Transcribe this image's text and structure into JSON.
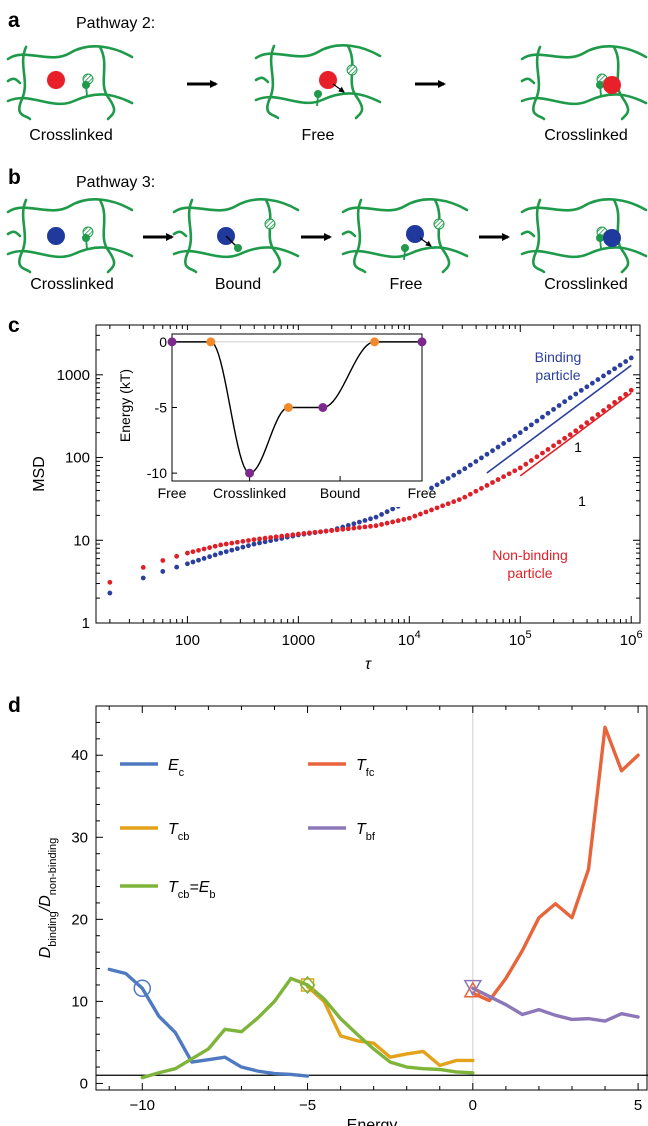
{
  "panel_a": {
    "letter": "a",
    "pathway": "Pathway 2:",
    "states": [
      "Crosslinked",
      "Free",
      "Crosslinked"
    ]
  },
  "panel_b": {
    "letter": "b",
    "pathway": "Pathway 3:",
    "states": [
      "Crosslinked",
      "Bound",
      "Free",
      "Crosslinked"
    ]
  },
  "colors": {
    "network": "#1e9a4a",
    "red_particle": "#e8202a",
    "blue_particle": "#1f3a9c",
    "binding_series": "#2b3f9e",
    "nonbinding_series": "#e02028",
    "purple_marker": "#7b2a8c",
    "orange_marker": "#f28a2c",
    "Ec": "#4f7ac0",
    "Tcb": "#e3a21a",
    "TcbEb": "#7fb43a",
    "Tfc": "#e8643a",
    "Tbf": "#8c78b8"
  },
  "chart_data": [
    {
      "panel": "c",
      "letter": "c",
      "type": "scatter",
      "xscale": "log",
      "yscale": "log",
      "xlabel": "τ",
      "ylabel": "MSD",
      "xlim": [
        15,
        1200000
      ],
      "ylim": [
        1,
        4000
      ],
      "x_ticks": [
        "100",
        "1000",
        "10",
        "10",
        "10"
      ],
      "x_tick_exponents": [
        "",
        "",
        "4",
        "5",
        "6"
      ],
      "x_tick_values": [
        100,
        1000,
        10000,
        100000,
        1000000
      ],
      "y_ticks": [
        "1",
        "10",
        "100",
        "1000"
      ],
      "y_tick_values": [
        1,
        10,
        100,
        1000
      ],
      "annotations": {
        "binding_label_1": "Binding",
        "binding_label_2": "particle",
        "nonbinding_label_1": "Non-binding",
        "nonbinding_label_2": "particle",
        "slope_label_1": "1",
        "slope_label_2": "1"
      },
      "series": [
        {
          "name": "Binding particle",
          "color": "#2b3f9e",
          "anchors": [
            [
              20,
              2.3
            ],
            [
              40,
              3.5
            ],
            [
              60,
              4.2
            ],
            [
              100,
              5.2
            ],
            [
              200,
              7.0
            ],
            [
              400,
              9.0
            ],
            [
              1000,
              11.6
            ],
            [
              2000,
              13.2
            ],
            [
              5000,
              19.0
            ],
            [
              10000,
              30.0
            ],
            [
              30000,
              70.0
            ],
            [
              100000,
              200.0
            ],
            [
              300000,
              560.0
            ],
            [
              1000000,
              1600.0
            ]
          ]
        },
        {
          "name": "Non-binding particle",
          "color": "#e02028",
          "anchors": [
            [
              20,
              3.1
            ],
            [
              40,
              4.7
            ],
            [
              60,
              5.7
            ],
            [
              100,
              7.0
            ],
            [
              200,
              8.8
            ],
            [
              400,
              10.2
            ],
            [
              1000,
              11.9
            ],
            [
              2000,
              13.1
            ],
            [
              5000,
              15.0
            ],
            [
              10000,
              18.5
            ],
            [
              30000,
              32.0
            ],
            [
              100000,
              75.0
            ],
            [
              300000,
              200.0
            ],
            [
              1000000,
              650.0
            ]
          ]
        }
      ],
      "slope_lines": [
        {
          "color": "#2b3f9e",
          "x": [
            50000,
            1000000
          ],
          "y": [
            65,
            1300
          ]
        },
        {
          "color": "#e02028",
          "x": [
            100000,
            1000000
          ],
          "y": [
            60,
            600
          ]
        }
      ],
      "inset": {
        "type": "line",
        "ylabel": "Energy (kT)",
        "ylim": [
          -10.6,
          0.6
        ],
        "y_ticks": [
          "0",
          "-5",
          "-10"
        ],
        "y_tick_values": [
          0,
          -5,
          -10
        ],
        "x_ticks": [
          "Free",
          "Crosslinked",
          "Bound",
          "Free"
        ],
        "x_tick_positions": [
          0,
          1.8,
          3.9,
          5.8
        ],
        "xlim": [
          0,
          5.8
        ],
        "curve": [
          [
            0,
            0
          ],
          [
            0.9,
            0
          ],
          [
            1.8,
            -10
          ],
          [
            2.7,
            -5
          ],
          [
            3.5,
            -5
          ],
          [
            4.7,
            0
          ],
          [
            5.8,
            0
          ]
        ],
        "markers": [
          {
            "x": 0,
            "y": 0,
            "color": "purple"
          },
          {
            "x": 0.9,
            "y": 0,
            "color": "orange"
          },
          {
            "x": 1.8,
            "y": -10,
            "color": "purple"
          },
          {
            "x": 2.7,
            "y": -5,
            "color": "orange"
          },
          {
            "x": 3.5,
            "y": -5,
            "color": "purple"
          },
          {
            "x": 4.7,
            "y": 0,
            "color": "orange"
          },
          {
            "x": 5.8,
            "y": 0,
            "color": "purple"
          }
        ]
      }
    },
    {
      "panel": "d",
      "letter": "d",
      "type": "line",
      "xlabel": "Energy",
      "ylabel_parts": [
        "D",
        "binding",
        "/D",
        "non-binding"
      ],
      "xlim": [
        -11.4,
        5.3
      ],
      "ylim": [
        -0.8,
        46
      ],
      "x_ticks": [
        "−10",
        "−5",
        "0",
        "5"
      ],
      "x_tick_values": [
        -10,
        -5,
        0,
        5
      ],
      "y_ticks": [
        "0",
        "10",
        "20",
        "30",
        "40"
      ],
      "y_tick_values": [
        0,
        10,
        20,
        30,
        40
      ],
      "legend": [
        {
          "main": "E",
          "sub": "c",
          "color": "#4f7ac0"
        },
        {
          "main": "T",
          "sub": "fc",
          "color": "#e8643a"
        },
        {
          "main": "T",
          "sub": "cb",
          "color": "#e3a21a"
        },
        {
          "main": "T",
          "sub": "bf",
          "color": "#8c78b8"
        },
        {
          "main": "T",
          "sub": "cb",
          "extra": "=E",
          "sub2": "b",
          "color": "#7fb43a"
        }
      ],
      "series": [
        {
          "name": "Ec",
          "color": "#4f7ac0",
          "x": [
            -11,
            -10.5,
            -10,
            -9.5,
            -9,
            -8.5,
            -8,
            -7.5,
            -7,
            -6.5,
            -6,
            -5.5,
            -5
          ],
          "y": [
            13.9,
            13.4,
            11.6,
            8.2,
            6.2,
            2.6,
            2.9,
            3.2,
            2.0,
            1.5,
            1.2,
            1.1,
            0.9
          ]
        },
        {
          "name": "Tcb",
          "color": "#e3a21a",
          "x": [
            -5,
            -4.5,
            -4,
            -3.5,
            -3,
            -2.5,
            -2,
            -1.5,
            -1,
            -0.5,
            0
          ],
          "y": [
            11.8,
            10.0,
            5.8,
            5.2,
            4.9,
            3.2,
            3.6,
            3.9,
            2.2,
            2.8,
            2.8
          ]
        },
        {
          "name": "Tcb=Eb",
          "color": "#7fb43a",
          "x": [
            -10,
            -9.5,
            -9,
            -8.5,
            -8,
            -7.5,
            -7,
            -6.5,
            -6,
            -5.5,
            -5,
            -4.5,
            -4,
            -3.5,
            -3,
            -2.5,
            -2,
            -1.5,
            -1,
            -0.5,
            0
          ],
          "y": [
            0.7,
            1.3,
            1.8,
            3.0,
            4.2,
            6.6,
            6.3,
            8.0,
            10.0,
            12.8,
            12.0,
            10.3,
            7.9,
            6.0,
            4.2,
            2.6,
            2.0,
            1.8,
            1.7,
            1.4,
            1.3
          ]
        },
        {
          "name": "Tfc",
          "color": "#e8643a",
          "x": [
            0,
            0.5,
            1,
            1.5,
            2,
            2.5,
            3,
            3.5,
            4,
            4.5,
            5
          ],
          "y": [
            11.0,
            10.1,
            12.8,
            16.2,
            20.2,
            21.9,
            20.2,
            26.1,
            43.4,
            38.1,
            40.0
          ]
        },
        {
          "name": "Tbf",
          "color": "#8c78b8",
          "x": [
            0,
            0.5,
            1,
            1.5,
            2,
            2.5,
            3,
            3.5,
            4,
            4.5,
            5
          ],
          "y": [
            11.6,
            10.6,
            9.6,
            8.4,
            9.0,
            8.3,
            7.8,
            7.9,
            7.6,
            8.5,
            8.1
          ]
        }
      ],
      "open_markers": [
        {
          "shape": "circle",
          "x": -10,
          "y": 11.6,
          "color": "#4f7ac0"
        },
        {
          "shape": "square",
          "x": -5,
          "y": 12.0,
          "color": "#e3a21a"
        },
        {
          "shape": "diamond",
          "x": -5,
          "y": 12.0,
          "color": "#7fb43a"
        },
        {
          "shape": "triangle-up",
          "x": 0,
          "y": 11.3,
          "color": "#e8643a"
        },
        {
          "shape": "triangle-down",
          "x": 0,
          "y": 11.8,
          "color": "#8c78b8"
        }
      ],
      "hlines": [
        1
      ],
      "vlines": [
        0
      ]
    }
  ]
}
